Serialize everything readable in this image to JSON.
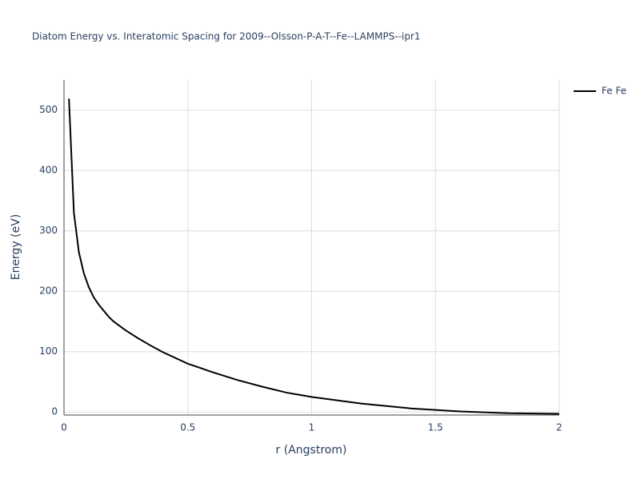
{
  "chart_data": {
    "type": "line",
    "title": "Diatom Energy vs. Interatomic Spacing for 2009--Olsson-P-A-T--Fe--LAMMPS--ipr1",
    "x_label": "r (Angstrom)",
    "y_label": "Energy (eV)",
    "x": [
      0.02,
      0.04,
      0.06,
      0.08,
      0.1,
      0.12,
      0.14,
      0.18,
      0.2,
      0.25,
      0.3,
      0.35,
      0.4,
      0.5,
      0.6,
      0.7,
      0.8,
      0.9,
      1.0,
      1.2,
      1.4,
      1.6,
      1.8,
      2.0
    ],
    "series": [
      {
        "name": "Fe Fe",
        "color": "#000000",
        "values": [
          519,
          330,
          265,
          230,
          207,
          190,
          178,
          158,
          150,
          135,
          122,
          110,
          99,
          80,
          66,
          53,
          42,
          32,
          25,
          14,
          6,
          1,
          -2,
          -3
        ]
      }
    ],
    "xlim": [
      0,
      2
    ],
    "xticks": [
      0,
      0.5,
      1,
      1.5,
      2
    ],
    "ylim": [
      -5,
      550
    ],
    "yticks": [
      0,
      100,
      200,
      300,
      400,
      500
    ],
    "grid": true,
    "legend": "right"
  }
}
